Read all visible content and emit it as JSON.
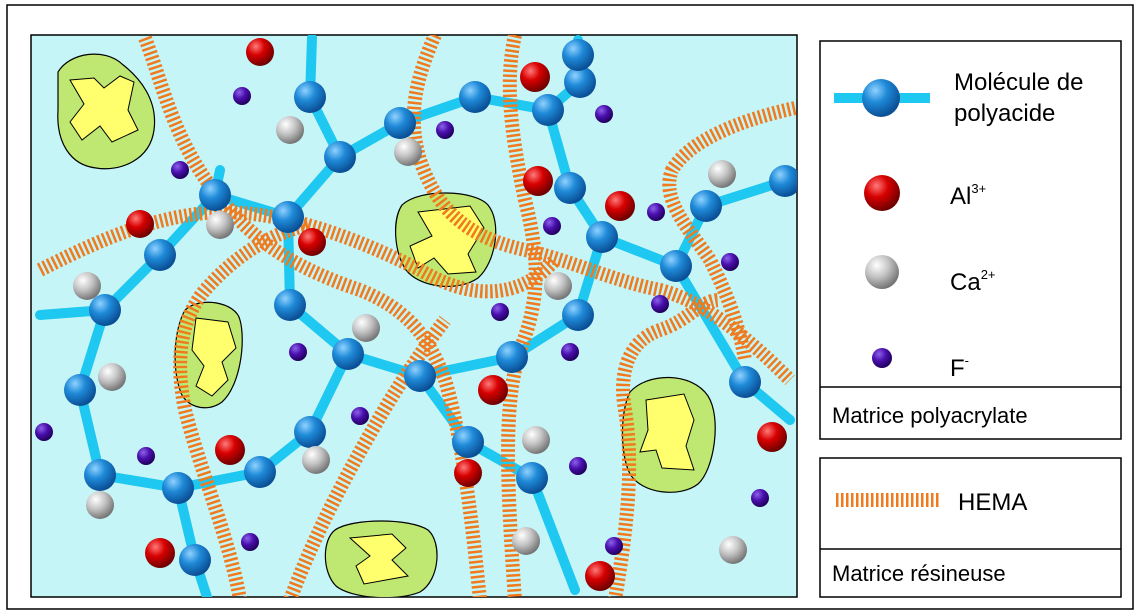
{
  "legend": {
    "molecule_label_line1": "Molécule de",
    "molecule_label_line2": "polyacide",
    "al_base": "Al",
    "al_sup": "3+",
    "ca_base": "Ca",
    "ca_sup": "2+",
    "f_base": "F",
    "f_sup": "-",
    "matrix_polyacrylate": "Matrice polyacrylate",
    "hema_label": "HEMA",
    "matrix_resin": "Matrice résineuse"
  },
  "colors": {
    "background": "#c5f5f7",
    "chain": "#1ec8f0",
    "bead_blue": "#1c86d6",
    "aluminium_red": "#d40000",
    "calcium_grey": "#b8b8b8",
    "fluoride_purple": "#5010a8",
    "hema_orange": "#f07a1e",
    "particle_green": "#bfe873",
    "particle_yellow": "#ffff6e"
  }
}
